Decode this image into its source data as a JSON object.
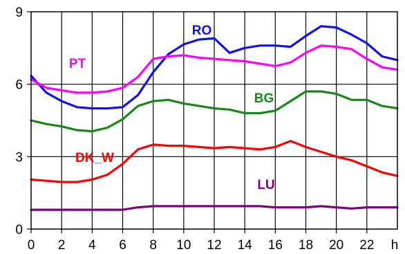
{
  "chart_data": {
    "type": "line",
    "title": "",
    "xlabel": "",
    "ylabel": "",
    "x_unit_label": "h",
    "xlim": [
      0,
      24
    ],
    "ylim": [
      0,
      9
    ],
    "grid": true,
    "x_ticks": [
      0,
      2,
      4,
      6,
      8,
      10,
      12,
      14,
      16,
      18,
      20,
      22
    ],
    "x_tick_labels": [
      "0",
      "2",
      "4",
      "6",
      "8",
      "10",
      "12",
      "14",
      "16",
      "18",
      "20",
      "22"
    ],
    "y_ticks": [
      0,
      3,
      6,
      9
    ],
    "y_tick_labels": [
      "0",
      "3",
      "6",
      "9"
    ],
    "x": [
      0,
      1,
      2,
      3,
      4,
      5,
      6,
      7,
      8,
      9,
      10,
      11,
      12,
      13,
      14,
      15,
      16,
      17,
      18,
      19,
      20,
      21,
      22,
      23,
      24
    ],
    "series": [
      {
        "name": "RO",
        "color": "#1010ee",
        "values": [
          6.35,
          5.65,
          5.3,
          5.05,
          5.0,
          5.0,
          5.05,
          5.55,
          6.5,
          7.25,
          7.65,
          7.85,
          7.9,
          7.3,
          7.5,
          7.6,
          7.6,
          7.55,
          8.0,
          8.4,
          8.35,
          8.05,
          7.7,
          7.15,
          7.0
        ]
      },
      {
        "name": "PT",
        "color": "#ff00ff",
        "values": [
          6.2,
          5.85,
          5.75,
          5.65,
          5.65,
          5.7,
          5.85,
          6.3,
          7.05,
          7.15,
          7.2,
          7.1,
          7.05,
          7.0,
          6.95,
          6.85,
          6.75,
          6.9,
          7.3,
          7.6,
          7.55,
          7.45,
          7.05,
          6.7,
          6.6
        ]
      },
      {
        "name": "BG",
        "color": "#158815",
        "values": [
          4.5,
          4.35,
          4.25,
          4.1,
          4.05,
          4.2,
          4.55,
          5.1,
          5.3,
          5.35,
          5.2,
          5.1,
          5.0,
          4.95,
          4.8,
          4.8,
          4.9,
          5.3,
          5.7,
          5.7,
          5.6,
          5.35,
          5.35,
          5.1,
          5.0
        ]
      },
      {
        "name": "DK_W",
        "color": "#ff0000",
        "values": [
          2.05,
          2.0,
          1.95,
          1.95,
          2.05,
          2.25,
          2.7,
          3.3,
          3.5,
          3.45,
          3.45,
          3.4,
          3.35,
          3.4,
          3.35,
          3.3,
          3.4,
          3.65,
          3.4,
          3.2,
          3.0,
          2.85,
          2.6,
          2.35,
          2.2
        ]
      },
      {
        "name": "LU",
        "color": "#800080",
        "values": [
          0.8,
          0.8,
          0.8,
          0.8,
          0.8,
          0.8,
          0.8,
          0.9,
          0.95,
          0.95,
          0.95,
          0.95,
          0.95,
          0.95,
          0.95,
          0.95,
          0.9,
          0.9,
          0.9,
          0.95,
          0.9,
          0.85,
          0.9,
          0.9,
          0.9
        ]
      }
    ]
  }
}
